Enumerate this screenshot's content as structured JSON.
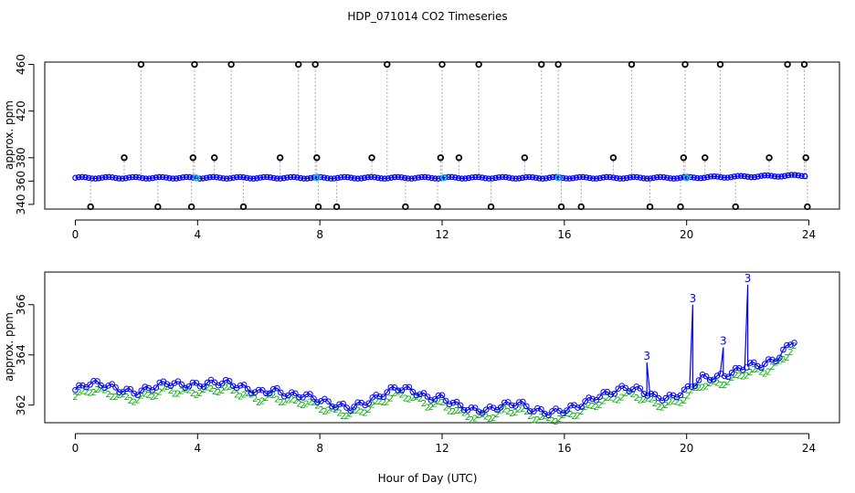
{
  "chart_data": {
    "title": "HDP_071014  CO2 Timeseries",
    "xlabel": "Hour of Day (UTC)",
    "panels": [
      {
        "type": "scatter",
        "ylabel": "approx. ppm",
        "xlim": [
          -1,
          25
        ],
        "ylim": [
          336,
          462
        ],
        "xticks": [
          "0",
          "4",
          "8",
          "12",
          "16",
          "20",
          "24"
        ],
        "yticks": [
          "340",
          "360",
          "380",
          "420",
          "460"
        ],
        "ytick_values": [
          340,
          360,
          380,
          420,
          460
        ],
        "baseline_ppm": 362.8,
        "high_points_460": [
          2.15,
          3.9,
          5.1,
          7.3,
          7.85,
          10.2,
          12.0,
          13.2,
          15.25,
          15.8,
          18.2,
          19.95,
          21.1,
          23.3,
          23.85
        ],
        "high_points_380": [
          1.6,
          3.85,
          4.55,
          6.7,
          7.9,
          9.7,
          11.95,
          12.55,
          14.7,
          17.6,
          19.9,
          20.6,
          22.7,
          23.9
        ],
        "low_points_338": [
          0.5,
          2.7,
          3.8,
          5.5,
          7.95,
          8.55,
          10.8,
          11.85,
          13.6,
          15.9,
          16.55,
          18.8,
          19.8,
          21.6,
          23.95
        ],
        "cyan_marks": [
          3.95,
          7.9,
          12.05,
          15.8,
          20.0
        ]
      },
      {
        "type": "line",
        "ylabel": "approx. ppm",
        "xlim": [
          -1,
          25
        ],
        "ylim": [
          361.3,
          367.3
        ],
        "xticks": [
          "0",
          "4",
          "8",
          "12",
          "16",
          "20",
          "24"
        ],
        "yticks": [
          "362",
          "364",
          "366"
        ],
        "ytick_values": [
          362,
          364,
          366
        ],
        "series": [
          {
            "name": "3",
            "color": "#0000ff",
            "marker": "circle"
          },
          {
            "name": "2",
            "color": "#00b000",
            "marker": "2"
          }
        ],
        "x": [
          0,
          0.5,
          1,
          1.5,
          2,
          2.5,
          3,
          3.5,
          4,
          4.5,
          5,
          5.5,
          6,
          6.5,
          7,
          7.5,
          8,
          8.5,
          9,
          9.5,
          10,
          10.5,
          11,
          11.5,
          12,
          12.5,
          13,
          13.5,
          14,
          14.5,
          15,
          15.5,
          16,
          16.5,
          17,
          17.5,
          18,
          18.5,
          19,
          19.5,
          20,
          20.5,
          21,
          21.5,
          22,
          22.5,
          23,
          23.5
        ],
        "values": [
          362.6,
          362.9,
          362.8,
          362.6,
          362.5,
          362.7,
          362.9,
          362.8,
          362.8,
          362.9,
          362.9,
          362.7,
          362.5,
          362.6,
          362.4,
          362.4,
          362.2,
          362.0,
          361.9,
          362.1,
          362.4,
          362.7,
          362.6,
          362.3,
          362.3,
          362.0,
          361.8,
          361.8,
          362.0,
          362.1,
          361.8,
          361.7,
          361.8,
          362.0,
          362.3,
          362.5,
          362.7,
          362.6,
          362.3,
          362.3,
          362.6,
          363.1,
          363.1,
          363.3,
          363.6,
          363.6,
          363.9,
          364.6
        ],
        "spikes": [
          {
            "x": 18.7,
            "y": 363.7,
            "label": "3"
          },
          {
            "x": 20.2,
            "y": 366.0,
            "label": "3"
          },
          {
            "x": 21.2,
            "y": 364.3,
            "label": "3"
          },
          {
            "x": 22.0,
            "y": 366.8,
            "label": "3"
          }
        ]
      }
    ]
  }
}
